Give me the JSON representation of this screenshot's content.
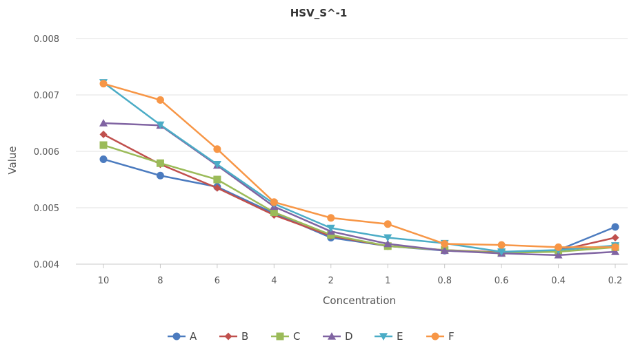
{
  "chart_data": {
    "type": "line",
    "title": "HSV_S^-1",
    "xlabel": "Concentration",
    "ylabel": "Value",
    "categories": [
      "10",
      "8",
      "6",
      "4",
      "2",
      "1",
      "0.8",
      "0.6",
      "0.4",
      "0.2"
    ],
    "ylim": [
      0.004,
      0.008
    ],
    "yticks": [
      "0.004",
      "0.005",
      "0.006",
      "0.007",
      "0.008"
    ],
    "grid": true,
    "legend_position": "bottom",
    "series": [
      {
        "name": "A",
        "color": "#4b7bbf",
        "marker": "circle",
        "values": [
          0.00586,
          0.00557,
          0.00537,
          0.0049,
          0.00447,
          0.00432,
          0.00424,
          0.0042,
          0.00425,
          0.00466
        ]
      },
      {
        "name": "B",
        "color": "#c0504d",
        "marker": "diamond",
        "values": [
          0.0063,
          0.00577,
          0.00535,
          0.00487,
          0.0045,
          0.00432,
          0.00425,
          0.00421,
          0.00424,
          0.00447
        ]
      },
      {
        "name": "C",
        "color": "#9bbb59",
        "marker": "square",
        "values": [
          0.00611,
          0.00579,
          0.0055,
          0.00492,
          0.00452,
          0.00432,
          0.00425,
          0.0042,
          0.00422,
          0.0043
        ]
      },
      {
        "name": "D",
        "color": "#8064a2",
        "marker": "triangle-up",
        "values": [
          0.0065,
          0.00646,
          0.00575,
          0.00502,
          0.00458,
          0.00436,
          0.00424,
          0.00419,
          0.00416,
          0.00422
        ]
      },
      {
        "name": "E",
        "color": "#4bacc6",
        "marker": "triangle-down",
        "values": [
          0.00722,
          0.00647,
          0.00577,
          0.00507,
          0.00464,
          0.00447,
          0.00437,
          0.00422,
          0.00425,
          0.00433
        ]
      },
      {
        "name": "F",
        "color": "#f79646",
        "marker": "circle",
        "values": [
          0.0072,
          0.00691,
          0.00604,
          0.0051,
          0.00482,
          0.00471,
          0.00436,
          0.00434,
          0.0043,
          0.0043
        ]
      }
    ]
  }
}
